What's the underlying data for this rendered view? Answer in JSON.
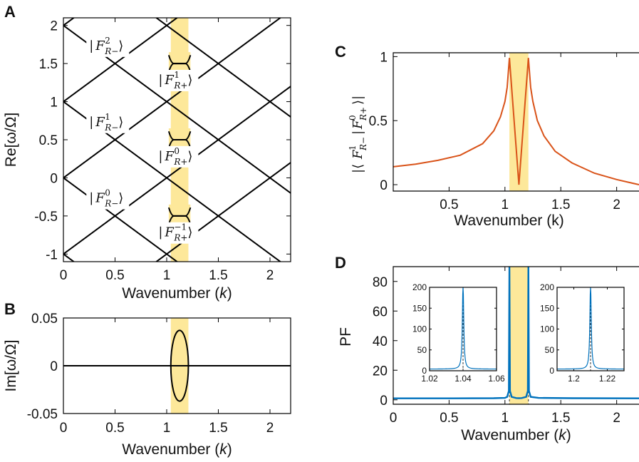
{
  "colors": {
    "band": "#fde89a",
    "line_black": "#000000",
    "orange": "#d95319",
    "blue": "#0072bd",
    "dashed": "#333333"
  },
  "chart_data": [
    {
      "panel": "A",
      "type": "line",
      "xlabel_prefix": "Wavenumber (",
      "xlabel_var": "k",
      "xlabel_suffix": ")",
      "ylabel": "Re[ω/Ω]",
      "xlim": [
        0,
        2.2
      ],
      "ylim": [
        -1.1,
        2.1
      ],
      "xticks": [
        0,
        0.5,
        1,
        1.5,
        2
      ],
      "xtick_labels": [
        "0",
        "0.5",
        "1",
        "1.5",
        "2"
      ],
      "yticks": [
        -1,
        -0.5,
        0,
        0.5,
        1,
        1.5,
        2
      ],
      "ytick_labels": [
        "-1",
        "-0.5",
        "0",
        "0.5",
        "1",
        "1.5",
        "2"
      ],
      "grid": false,
      "shaded_band_x": [
        1.04,
        1.21
      ],
      "description": "Bands ω = ±k/c + n; anticrossings at half-integer ω near k≈1.125",
      "series": [
        {
          "branches": "ω = k - 1 + n, ω = -k + n for n=-1..3, with avoided crossings at k≈1.125"
        }
      ],
      "annotations": [
        {
          "base": "F",
          "sup": "2",
          "sub": "R−",
          "x": 0.25,
          "y": 1.68
        },
        {
          "base": "F",
          "sup": "1",
          "sub": "R+",
          "x": 0.92,
          "y": 1.23
        },
        {
          "base": "F",
          "sup": "1",
          "sub": "R−",
          "x": 0.25,
          "y": 0.68
        },
        {
          "base": "F",
          "sup": "0",
          "sub": "R+",
          "x": 0.92,
          "y": 0.23
        },
        {
          "base": "F",
          "sup": "0",
          "sub": "R−",
          "x": 0.25,
          "y": -0.32
        },
        {
          "base": "F",
          "sup": "−1",
          "sub": "R+",
          "x": 0.92,
          "y": -0.77
        }
      ]
    },
    {
      "panel": "B",
      "type": "line",
      "xlabel_prefix": "Wavenumber (",
      "xlabel_var": "k",
      "xlabel_suffix": ")",
      "ylabel": "Im[ω/Ω]",
      "xlim": [
        0,
        2.2
      ],
      "ylim": [
        -0.05,
        0.05
      ],
      "xticks": [
        0,
        0.5,
        1,
        1.5,
        2
      ],
      "xtick_labels": [
        "0",
        "0.5",
        "1",
        "1.5",
        "2"
      ],
      "yticks": [
        -0.05,
        0,
        0.05
      ],
      "ytick_labels": [
        "-0.05",
        "0",
        "0.05"
      ],
      "shaded_band_x": [
        1.04,
        1.21
      ],
      "ellipse": {
        "center_x": 1.125,
        "half_width_x": 0.085,
        "half_height_y": 0.037
      }
    },
    {
      "panel": "C",
      "type": "line",
      "ylabel": "|⟨F¹R−|F⁰R+⟩|",
      "xlabel_prefix": "Wavenumber (k)",
      "xlabel_var": "",
      "xlabel_suffix": "",
      "xlim": [
        0,
        2.2
      ],
      "ylim": [
        -0.05,
        1.03
      ],
      "xticks": [
        0.5,
        1,
        1.5,
        2
      ],
      "xtick_labels": [
        "0.5",
        "1",
        "1.5",
        "2"
      ],
      "yticks": [
        0,
        0.5,
        1
      ],
      "ytick_labels": [
        "0",
        "0.5",
        "1"
      ],
      "shaded_band_x": [
        1.04,
        1.21
      ],
      "series": [
        {
          "x": [
            0.0,
            0.2,
            0.4,
            0.6,
            0.8,
            0.9,
            0.96,
            1.0,
            1.02,
            1.04,
            1.125,
            1.21,
            1.23,
            1.25,
            1.29,
            1.35,
            1.45,
            1.6,
            1.8,
            2.0,
            2.2
          ],
          "y": [
            0.14,
            0.16,
            0.19,
            0.23,
            0.32,
            0.42,
            0.53,
            0.65,
            0.76,
            0.99,
            0.0,
            0.99,
            0.76,
            0.65,
            0.5,
            0.38,
            0.26,
            0.17,
            0.09,
            0.04,
            0.0
          ]
        }
      ]
    },
    {
      "panel": "D",
      "type": "line",
      "xlabel_prefix": "Wavenumber (",
      "xlabel_var": "k",
      "xlabel_suffix": ")",
      "ylabel": "PF",
      "xlim": [
        0,
        2.2
      ],
      "ylim": [
        -3,
        90
      ],
      "xticks": [
        0,
        0.5,
        1,
        1.5,
        2
      ],
      "xtick_labels": [
        "0",
        "0.5",
        "1",
        "1.5",
        "2"
      ],
      "yticks": [
        0,
        20,
        40,
        60,
        80
      ],
      "ytick_labels": [
        "0",
        "20",
        "40",
        "60",
        "80"
      ],
      "shaded_band_x": [
        1.04,
        1.21
      ],
      "series": [
        {
          "x": [
            0.0,
            0.5,
            0.9,
            1.0,
            1.02,
            1.035,
            1.04,
            1.045,
            1.06,
            1.1,
            1.125,
            1.15,
            1.19,
            1.205,
            1.21,
            1.215,
            1.23,
            1.3,
            1.6,
            2.2
          ],
          "y": [
            1.0,
            1.0,
            1.1,
            1.3,
            2.0,
            6.0,
            90,
            6.0,
            2.0,
            1.2,
            1.1,
            1.2,
            2.0,
            6.0,
            90,
            6.0,
            2.0,
            1.3,
            1.1,
            1.0
          ]
        }
      ],
      "insets": [
        {
          "xlim": [
            1.02,
            1.06
          ],
          "ylim": [
            0,
            200
          ],
          "xticks": [
            1.02,
            1.04,
            1.06
          ],
          "xtick_labels": [
            "1.02",
            "1.04",
            "1.06"
          ],
          "yticks": [
            0,
            50,
            100,
            150,
            200
          ],
          "ytick_labels": [
            "0",
            "50",
            "100",
            "150",
            "200"
          ],
          "peak_x": 1.04
        },
        {
          "xlim": [
            1.19,
            1.23
          ],
          "ylim": [
            0,
            200
          ],
          "xticks": [
            1.2,
            1.22
          ],
          "xtick_labels": [
            "1.2",
            "1.22"
          ],
          "yticks": [
            0,
            50,
            100,
            150,
            200
          ],
          "ytick_labels": [
            "0",
            "50",
            "100",
            "150",
            "200"
          ],
          "peak_x": 1.21
        }
      ]
    }
  ]
}
